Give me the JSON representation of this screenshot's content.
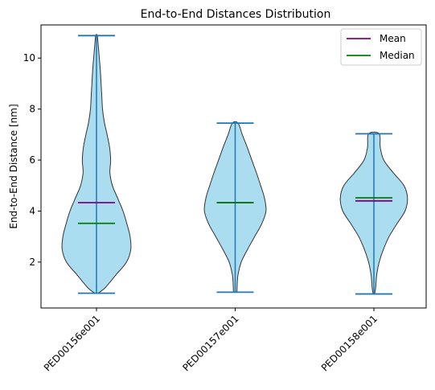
{
  "chart_data": {
    "type": "violin",
    "title": "End-to-End Distances Distribution",
    "xlabel": "",
    "ylabel": "End-to-End Distance [nm]",
    "ylim": [
      0.2,
      11.3
    ],
    "yticks": [
      2,
      4,
      6,
      8,
      10
    ],
    "categories": [
      "PED00156e001",
      "PED00157e001",
      "PED00158e001"
    ],
    "grid": false,
    "legend": {
      "position": "top-right",
      "entries": [
        {
          "label": "Mean",
          "color": "#800080"
        },
        {
          "label": "Median",
          "color": "#008000"
        }
      ]
    },
    "colors": {
      "violin_fill": "#87ceeb",
      "violin_edge": "#333333",
      "extrema": "#1f77b4",
      "mean": "#800080",
      "median": "#008000"
    },
    "violins": [
      {
        "name": "PED00156e001",
        "min": 0.78,
        "max": 10.88,
        "mean": 4.33,
        "median": 3.52,
        "profile": [
          [
            0.78,
            0.05
          ],
          [
            1.0,
            0.25
          ],
          [
            1.5,
            0.55
          ],
          [
            2.0,
            0.85
          ],
          [
            2.5,
            0.97
          ],
          [
            3.0,
            0.95
          ],
          [
            3.5,
            0.86
          ],
          [
            4.0,
            0.75
          ],
          [
            4.5,
            0.6
          ],
          [
            5.0,
            0.45
          ],
          [
            5.5,
            0.38
          ],
          [
            6.0,
            0.4
          ],
          [
            6.5,
            0.37
          ],
          [
            7.0,
            0.3
          ],
          [
            7.5,
            0.22
          ],
          [
            8.0,
            0.17
          ],
          [
            8.5,
            0.15
          ],
          [
            9.0,
            0.13
          ],
          [
            9.5,
            0.11
          ],
          [
            10.0,
            0.08
          ],
          [
            10.5,
            0.05
          ],
          [
            10.88,
            0.02
          ]
        ]
      },
      {
        "name": "PED00157e001",
        "min": 0.82,
        "max": 7.45,
        "mean": 4.33,
        "median": 4.33,
        "profile": [
          [
            0.82,
            0.05
          ],
          [
            1.2,
            0.06
          ],
          [
            1.5,
            0.08
          ],
          [
            2.0,
            0.17
          ],
          [
            2.5,
            0.35
          ],
          [
            3.0,
            0.55
          ],
          [
            3.5,
            0.75
          ],
          [
            4.0,
            0.87
          ],
          [
            4.5,
            0.83
          ],
          [
            5.0,
            0.72
          ],
          [
            5.5,
            0.6
          ],
          [
            6.0,
            0.47
          ],
          [
            6.5,
            0.34
          ],
          [
            7.0,
            0.2
          ],
          [
            7.45,
            0.08
          ]
        ]
      },
      {
        "name": "PED00158e001",
        "min": 0.75,
        "max": 7.03,
        "mean": 4.4,
        "median": 4.52,
        "profile": [
          [
            0.75,
            0.02
          ],
          [
            1.0,
            0.05
          ],
          [
            1.5,
            0.08
          ],
          [
            2.0,
            0.15
          ],
          [
            2.5,
            0.27
          ],
          [
            3.0,
            0.43
          ],
          [
            3.5,
            0.65
          ],
          [
            4.0,
            0.88
          ],
          [
            4.5,
            0.95
          ],
          [
            5.0,
            0.85
          ],
          [
            5.5,
            0.55
          ],
          [
            6.0,
            0.28
          ],
          [
            6.5,
            0.18
          ],
          [
            7.03,
            0.15
          ]
        ]
      }
    ]
  }
}
